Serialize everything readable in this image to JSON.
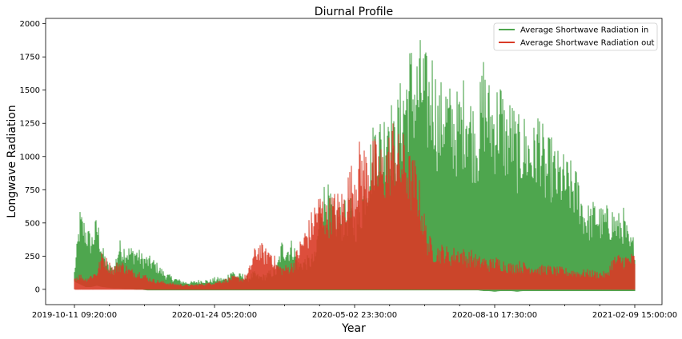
{
  "chart_data": {
    "type": "line",
    "title": "Diurnal Profile",
    "xlabel": "Year",
    "ylabel": "Longwave Radiation",
    "x_tick_labels": [
      "2019-10-11 09:20:00",
      "2020-01-24 05:20:00",
      "2020-05-02 23:30:00",
      "2020-08-10 17:30:00",
      "2021-02-09 15:00:00"
    ],
    "y_ticks": [
      0,
      250,
      500,
      750,
      1000,
      1250,
      1500,
      1750,
      2000
    ],
    "ylim": [
      -115,
      2040
    ],
    "grid": false,
    "legend_position": "upper right",
    "series": [
      {
        "name": "Average Shortwave Radiation in",
        "color": "#4ea64e",
        "envelope_max": [
          140,
          610,
          520,
          420,
          570,
          330,
          200,
          170,
          380,
          350,
          330,
          330,
          280,
          260,
          240,
          190,
          140,
          110,
          90,
          70,
          60,
          60,
          70,
          80,
          70,
          90,
          90,
          90,
          160,
          120,
          120,
          100,
          140,
          110,
          120,
          150,
          160,
          380,
          360,
          390,
          220,
          250,
          260,
          290,
          800,
          840,
          680,
          640,
          650,
          720,
          610,
          700,
          1000,
          1200,
          1420,
          1300,
          1650,
          1300,
          1550,
          1740,
          1900,
          1820,
          1940,
          1760,
          1870,
          1500,
          1700,
          1560,
          1500,
          1550,
          1700,
          1450,
          1400,
          1810,
          1600,
          1550,
          1650,
          1400,
          1480,
          1300,
          1360,
          1300,
          1250,
          1450,
          1100,
          1180,
          1060,
          1050,
          1000,
          960,
          880,
          680,
          640,
          700,
          630,
          640,
          640,
          580,
          620,
          410,
          410
        ],
        "envelope_min": [
          60,
          40,
          20,
          20,
          30,
          20,
          15,
          10,
          10,
          5,
          5,
          0,
          0,
          -5,
          -5,
          -5,
          -5,
          -5,
          -5,
          -5,
          -5,
          -5,
          -5,
          -5,
          -5,
          -5,
          -5,
          -5,
          -5,
          -5,
          -5,
          -5,
          -5,
          -5,
          -5,
          -5,
          -5,
          -5,
          -5,
          -5,
          -5,
          -5,
          -5,
          -5,
          -5,
          -5,
          -5,
          -5,
          -5,
          -5,
          -5,
          -5,
          -5,
          -5,
          -5,
          -5,
          -5,
          -5,
          -5,
          -5,
          -5,
          -5,
          -5,
          -5,
          -5,
          -5,
          -5,
          -5,
          -5,
          -5,
          -5,
          -5,
          -5,
          -10,
          -10,
          -15,
          -10,
          -10,
          -10,
          -15,
          -10,
          -10,
          -10,
          -10,
          -10,
          -10,
          -10,
          -10,
          -10,
          -10,
          -10,
          -10,
          -10,
          -10,
          -10,
          -10,
          -10,
          -10,
          -10,
          -10,
          -10
        ]
      },
      {
        "name": "Average Shortwave Radiation out",
        "color": "#d93b27",
        "envelope_max": [
          100,
          120,
          90,
          120,
          150,
          300,
          220,
          180,
          230,
          200,
          160,
          150,
          140,
          100,
          80,
          70,
          60,
          50,
          45,
          40,
          35,
          35,
          40,
          45,
          50,
          60,
          70,
          80,
          100,
          100,
          90,
          140,
          300,
          380,
          310,
          340,
          220,
          180,
          190,
          220,
          350,
          460,
          550,
          700,
          760,
          660,
          740,
          750,
          770,
          930,
          1000,
          1150,
          1100,
          1150,
          1140,
          1100,
          1180,
          1350,
          1160,
          1200,
          1010,
          1010,
          700,
          450,
          350,
          340,
          350,
          300,
          330,
          330,
          290,
          300,
          250,
          260,
          230,
          250,
          240,
          220,
          200,
          220,
          210,
          200,
          200,
          180,
          190,
          180,
          170,
          170,
          160,
          160,
          150,
          150,
          150,
          140,
          140,
          130,
          250,
          270,
          270,
          270,
          280
        ],
        "envelope_min": [
          0,
          0,
          0,
          0,
          0,
          0,
          0,
          0,
          0,
          0,
          0,
          0,
          0,
          0,
          0,
          0,
          0,
          0,
          0,
          0,
          0,
          0,
          0,
          0,
          0,
          0,
          0,
          0,
          0,
          0,
          0,
          0,
          0,
          0,
          0,
          0,
          0,
          0,
          0,
          0,
          0,
          0,
          0,
          0,
          0,
          0,
          0,
          0,
          0,
          0,
          0,
          0,
          0,
          0,
          0,
          0,
          0,
          0,
          0,
          0,
          0,
          0,
          0,
          0,
          0,
          0,
          0,
          0,
          0,
          0,
          0,
          0,
          0,
          0,
          0,
          0,
          0,
          0,
          0,
          0,
          0,
          0,
          0,
          0,
          0,
          0,
          0,
          0,
          0,
          0,
          0,
          0,
          0,
          0,
          0,
          0,
          0,
          0,
          0,
          0,
          0
        ]
      }
    ]
  }
}
